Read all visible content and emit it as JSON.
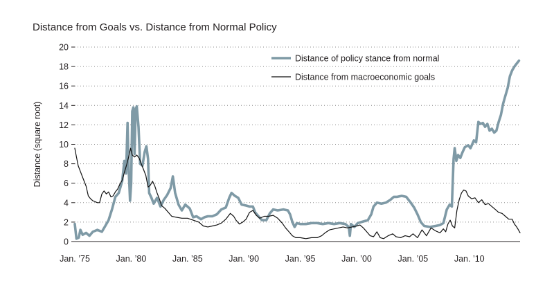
{
  "chart_data": {
    "type": "line",
    "title": "Distance from Goals vs. Distance from Normal Policy",
    "ylabel": "Distance (square root)",
    "xlabel": "",
    "ylim": [
      0,
      20
    ],
    "yticks": [
      0,
      2,
      4,
      6,
      8,
      10,
      12,
      14,
      16,
      18,
      20
    ],
    "xlim": [
      1975,
      2014.5
    ],
    "xticks": [
      {
        "value": 1975,
        "label": "Jan. ’75"
      },
      {
        "value": 1980,
        "label": "Jan. ’80"
      },
      {
        "value": 1985,
        "label": "Jan. ’85"
      },
      {
        "value": 1990,
        "label": "Jan. ’90"
      },
      {
        "value": 1995,
        "label": "Jan. ’95"
      },
      {
        "value": 2000,
        "label": "Jan. ’00"
      },
      {
        "value": 2005,
        "label": "Jan. ’05"
      },
      {
        "value": 2010,
        "label": "Jan. ’10"
      }
    ],
    "grid": "horizontal dotted",
    "legend_position": "top-right",
    "series": [
      {
        "name": "Distance of policy stance from normal",
        "color": "#7f9aa6",
        "style": "thick",
        "points": [
          [
            1975.0,
            1.8
          ],
          [
            1975.15,
            0.3
          ],
          [
            1975.35,
            0.4
          ],
          [
            1975.5,
            1.2
          ],
          [
            1975.7,
            0.7
          ],
          [
            1976.0,
            0.9
          ],
          [
            1976.3,
            0.6
          ],
          [
            1976.6,
            1.0
          ],
          [
            1977.0,
            1.2
          ],
          [
            1977.4,
            1.0
          ],
          [
            1977.7,
            1.6
          ],
          [
            1978.0,
            2.2
          ],
          [
            1978.3,
            3.3
          ],
          [
            1978.6,
            4.6
          ],
          [
            1978.9,
            5.0
          ],
          [
            1979.2,
            6.2
          ],
          [
            1979.4,
            8.3
          ],
          [
            1979.55,
            7.0
          ],
          [
            1979.68,
            12.2
          ],
          [
            1979.78,
            7.5
          ],
          [
            1979.9,
            4.2
          ],
          [
            1980.0,
            6.0
          ],
          [
            1980.1,
            13.4
          ],
          [
            1980.2,
            13.8
          ],
          [
            1980.3,
            9.0
          ],
          [
            1980.4,
            13.6
          ],
          [
            1980.5,
            13.9
          ],
          [
            1980.65,
            11.8
          ],
          [
            1980.8,
            8.0
          ],
          [
            1981.0,
            7.8
          ],
          [
            1981.2,
            9.2
          ],
          [
            1981.35,
            9.8
          ],
          [
            1981.5,
            8.5
          ],
          [
            1981.6,
            5.0
          ],
          [
            1981.8,
            4.5
          ],
          [
            1982.0,
            3.9
          ],
          [
            1982.3,
            4.5
          ],
          [
            1982.6,
            3.6
          ],
          [
            1982.9,
            4.3
          ],
          [
            1983.2,
            4.8
          ],
          [
            1983.5,
            5.5
          ],
          [
            1983.7,
            6.7
          ],
          [
            1983.9,
            5.0
          ],
          [
            1984.2,
            3.8
          ],
          [
            1984.5,
            3.2
          ],
          [
            1984.8,
            3.8
          ],
          [
            1985.2,
            3.4
          ],
          [
            1985.5,
            2.5
          ],
          [
            1985.8,
            2.6
          ],
          [
            1986.2,
            2.3
          ],
          [
            1986.5,
            2.5
          ],
          [
            1986.8,
            2.6
          ],
          [
            1987.2,
            2.6
          ],
          [
            1987.6,
            2.8
          ],
          [
            1988.0,
            3.3
          ],
          [
            1988.4,
            3.5
          ],
          [
            1988.7,
            4.5
          ],
          [
            1988.9,
            5.0
          ],
          [
            1989.2,
            4.7
          ],
          [
            1989.5,
            4.5
          ],
          [
            1989.8,
            3.8
          ],
          [
            1990.2,
            3.7
          ],
          [
            1990.5,
            3.6
          ],
          [
            1990.8,
            3.6
          ],
          [
            1991.0,
            3.0
          ],
          [
            1991.3,
            2.6
          ],
          [
            1991.6,
            2.2
          ],
          [
            1992.0,
            2.2
          ],
          [
            1992.3,
            2.9
          ],
          [
            1992.6,
            3.3
          ],
          [
            1993.0,
            3.2
          ],
          [
            1993.5,
            3.3
          ],
          [
            1993.9,
            3.2
          ],
          [
            1994.1,
            2.8
          ],
          [
            1994.3,
            2.0
          ],
          [
            1994.5,
            1.5
          ],
          [
            1994.7,
            1.9
          ],
          [
            1995.0,
            1.8
          ],
          [
            1995.5,
            1.8
          ],
          [
            1996.0,
            1.9
          ],
          [
            1996.5,
            1.9
          ],
          [
            1997.0,
            1.8
          ],
          [
            1997.5,
            1.9
          ],
          [
            1998.0,
            1.8
          ],
          [
            1998.5,
            1.9
          ],
          [
            1999.0,
            1.8
          ],
          [
            1999.3,
            1.5
          ],
          [
            1999.4,
            0.6
          ],
          [
            1999.5,
            1.8
          ],
          [
            1999.8,
            1.5
          ],
          [
            2000.1,
            1.9
          ],
          [
            2000.4,
            2.0
          ],
          [
            2000.7,
            2.1
          ],
          [
            2001.0,
            2.2
          ],
          [
            2001.3,
            2.8
          ],
          [
            2001.5,
            3.6
          ],
          [
            2001.8,
            4.0
          ],
          [
            2002.2,
            3.9
          ],
          [
            2002.6,
            4.0
          ],
          [
            2003.0,
            4.3
          ],
          [
            2003.3,
            4.6
          ],
          [
            2003.6,
            4.6
          ],
          [
            2004.0,
            4.7
          ],
          [
            2004.4,
            4.6
          ],
          [
            2004.8,
            4.0
          ],
          [
            2005.1,
            3.5
          ],
          [
            2005.4,
            2.8
          ],
          [
            2005.7,
            2.0
          ],
          [
            2006.0,
            1.6
          ],
          [
            2006.5,
            1.5
          ],
          [
            2007.0,
            1.6
          ],
          [
            2007.4,
            1.7
          ],
          [
            2007.7,
            1.9
          ],
          [
            2008.0,
            3.3
          ],
          [
            2008.25,
            3.8
          ],
          [
            2008.45,
            3.6
          ],
          [
            2008.6,
            8.5
          ],
          [
            2008.7,
            9.6
          ],
          [
            2008.85,
            8.3
          ],
          [
            2009.0,
            8.9
          ],
          [
            2009.2,
            8.6
          ],
          [
            2009.4,
            9.2
          ],
          [
            2009.6,
            9.7
          ],
          [
            2009.9,
            9.9
          ],
          [
            2010.1,
            9.6
          ],
          [
            2010.4,
            10.4
          ],
          [
            2010.6,
            10.2
          ],
          [
            2010.8,
            12.3
          ],
          [
            2011.0,
            12.1
          ],
          [
            2011.2,
            12.2
          ],
          [
            2011.4,
            11.8
          ],
          [
            2011.6,
            12.1
          ],
          [
            2011.8,
            11.4
          ],
          [
            2012.0,
            11.6
          ],
          [
            2012.2,
            11.2
          ],
          [
            2012.4,
            11.4
          ],
          [
            2012.6,
            12.3
          ],
          [
            2012.8,
            13.0
          ],
          [
            2013.0,
            14.2
          ],
          [
            2013.2,
            15.0
          ],
          [
            2013.4,
            15.8
          ],
          [
            2013.6,
            17.0
          ],
          [
            2013.8,
            17.6
          ],
          [
            2014.0,
            18.0
          ],
          [
            2014.2,
            18.3
          ],
          [
            2014.4,
            18.6
          ]
        ]
      },
      {
        "name": "Distance from macroeconomic goals",
        "color": "#111111",
        "style": "thin",
        "points": [
          [
            1975.0,
            9.6
          ],
          [
            1975.15,
            8.7
          ],
          [
            1975.3,
            7.8
          ],
          [
            1975.5,
            7.2
          ],
          [
            1975.8,
            6.3
          ],
          [
            1976.0,
            5.7
          ],
          [
            1976.2,
            4.7
          ],
          [
            1976.4,
            4.4
          ],
          [
            1976.6,
            4.2
          ],
          [
            1976.8,
            4.1
          ],
          [
            1977.0,
            4.0
          ],
          [
            1977.2,
            4.0
          ],
          [
            1977.4,
            4.9
          ],
          [
            1977.6,
            5.2
          ],
          [
            1977.8,
            4.9
          ],
          [
            1978.0,
            5.1
          ],
          [
            1978.2,
            4.6
          ],
          [
            1978.4,
            4.7
          ],
          [
            1978.6,
            5.1
          ],
          [
            1978.8,
            5.4
          ],
          [
            1979.0,
            5.9
          ],
          [
            1979.2,
            6.3
          ],
          [
            1979.4,
            7.1
          ],
          [
            1979.6,
            7.9
          ],
          [
            1979.8,
            8.8
          ],
          [
            1979.95,
            9.6
          ],
          [
            1980.1,
            8.9
          ],
          [
            1980.3,
            8.7
          ],
          [
            1980.5,
            8.9
          ],
          [
            1980.7,
            8.6
          ],
          [
            1980.9,
            8.0
          ],
          [
            1981.1,
            7.4
          ],
          [
            1981.3,
            6.8
          ],
          [
            1981.5,
            5.6
          ],
          [
            1981.7,
            5.8
          ],
          [
            1981.9,
            6.2
          ],
          [
            1982.1,
            5.7
          ],
          [
            1982.3,
            5.0
          ],
          [
            1982.5,
            4.4
          ],
          [
            1982.7,
            3.7
          ],
          [
            1983.0,
            3.4
          ],
          [
            1983.3,
            3.0
          ],
          [
            1983.6,
            2.6
          ],
          [
            1984.0,
            2.5
          ],
          [
            1984.5,
            2.4
          ],
          [
            1985.0,
            2.4
          ],
          [
            1985.5,
            2.2
          ],
          [
            1986.0,
            2.0
          ],
          [
            1986.4,
            1.6
          ],
          [
            1986.8,
            1.5
          ],
          [
            1987.2,
            1.6
          ],
          [
            1987.6,
            1.7
          ],
          [
            1988.0,
            1.9
          ],
          [
            1988.4,
            2.3
          ],
          [
            1988.8,
            2.9
          ],
          [
            1989.1,
            2.6
          ],
          [
            1989.3,
            2.2
          ],
          [
            1989.6,
            1.8
          ],
          [
            1989.9,
            2.0
          ],
          [
            1990.2,
            2.3
          ],
          [
            1990.5,
            3.0
          ],
          [
            1990.8,
            3.2
          ],
          [
            1991.1,
            2.7
          ],
          [
            1991.4,
            2.4
          ],
          [
            1991.8,
            2.6
          ],
          [
            1992.2,
            2.6
          ],
          [
            1992.6,
            2.7
          ],
          [
            1993.0,
            2.4
          ],
          [
            1993.4,
            1.9
          ],
          [
            1993.7,
            1.4
          ],
          [
            1994.0,
            1.0
          ],
          [
            1994.3,
            0.6
          ],
          [
            1994.6,
            0.4
          ],
          [
            1995.0,
            0.4
          ],
          [
            1995.5,
            0.3
          ],
          [
            1996.0,
            0.4
          ],
          [
            1996.5,
            0.4
          ],
          [
            1996.9,
            0.6
          ],
          [
            1997.2,
            0.9
          ],
          [
            1997.6,
            1.2
          ],
          [
            1998.0,
            1.3
          ],
          [
            1998.4,
            1.4
          ],
          [
            1998.8,
            1.5
          ],
          [
            1999.2,
            1.4
          ],
          [
            1999.6,
            1.5
          ],
          [
            2000.0,
            1.6
          ],
          [
            2000.3,
            1.7
          ],
          [
            2000.6,
            1.4
          ],
          [
            2000.9,
            1.0
          ],
          [
            2001.2,
            0.6
          ],
          [
            2001.5,
            0.5
          ],
          [
            2001.8,
            1.0
          ],
          [
            2002.1,
            0.4
          ],
          [
            2002.4,
            0.3
          ],
          [
            2002.8,
            0.6
          ],
          [
            2003.2,
            0.8
          ],
          [
            2003.5,
            0.5
          ],
          [
            2003.9,
            0.4
          ],
          [
            2004.3,
            0.6
          ],
          [
            2004.7,
            0.5
          ],
          [
            2005.0,
            0.8
          ],
          [
            2005.4,
            0.4
          ],
          [
            2005.8,
            1.2
          ],
          [
            2006.2,
            0.6
          ],
          [
            2006.6,
            1.4
          ],
          [
            2007.0,
            1.1
          ],
          [
            2007.4,
            0.9
          ],
          [
            2007.7,
            1.3
          ],
          [
            2007.9,
            1.0
          ],
          [
            2008.1,
            1.8
          ],
          [
            2008.3,
            2.2
          ],
          [
            2008.5,
            1.6
          ],
          [
            2008.7,
            1.4
          ],
          [
            2008.9,
            3.2
          ],
          [
            2009.1,
            4.3
          ],
          [
            2009.3,
            5.0
          ],
          [
            2009.5,
            5.3
          ],
          [
            2009.7,
            5.2
          ],
          [
            2009.9,
            4.7
          ],
          [
            2010.2,
            4.4
          ],
          [
            2010.5,
            4.5
          ],
          [
            2010.8,
            4.0
          ],
          [
            2011.1,
            4.3
          ],
          [
            2011.4,
            3.8
          ],
          [
            2011.7,
            3.9
          ],
          [
            2012.0,
            3.6
          ],
          [
            2012.3,
            3.3
          ],
          [
            2012.6,
            3.0
          ],
          [
            2012.9,
            2.9
          ],
          [
            2013.2,
            2.6
          ],
          [
            2013.5,
            2.3
          ],
          [
            2013.8,
            2.3
          ],
          [
            2014.0,
            1.8
          ],
          [
            2014.2,
            1.5
          ],
          [
            2014.35,
            1.2
          ],
          [
            2014.5,
            0.9
          ]
        ]
      }
    ]
  }
}
